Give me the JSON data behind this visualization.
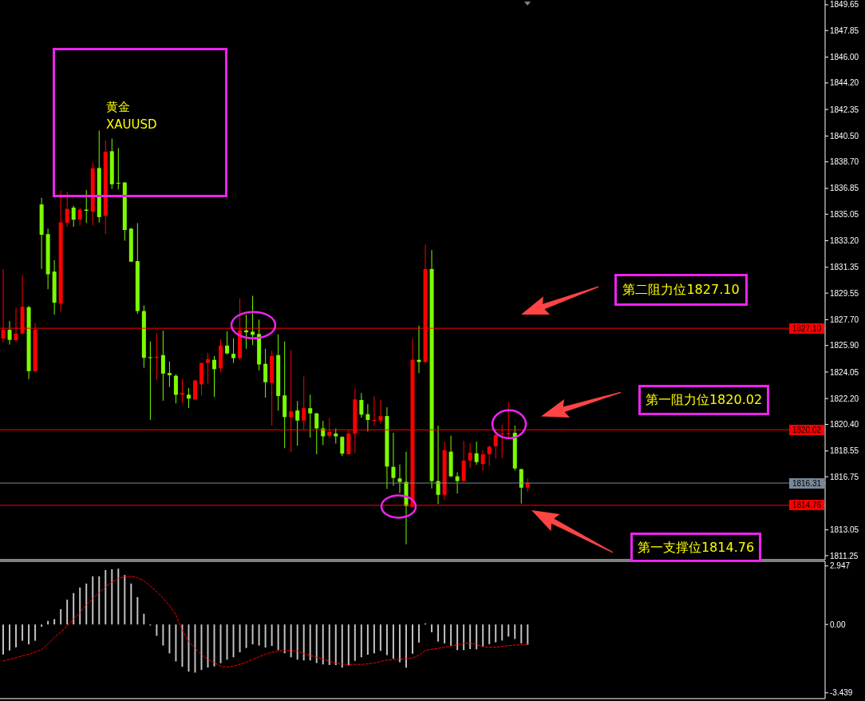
{
  "chart_data": [
    {
      "type": "candlestick",
      "title": "黄金",
      "subtitle": "XAUUSD",
      "categories": [
        null,
        null,
        null,
        null,
        null,
        null,
        null,
        null,
        null,
        null,
        null,
        null,
        null,
        null,
        null,
        null,
        null,
        null,
        null,
        null,
        null,
        null,
        null,
        null,
        null,
        null,
        null,
        null,
        null,
        null,
        null,
        null,
        null,
        null,
        null,
        null,
        null,
        null,
        null,
        null,
        null,
        null,
        null,
        null,
        null,
        null,
        null,
        null,
        null,
        null,
        null,
        null,
        null,
        null,
        null,
        null,
        null,
        null,
        null,
        null,
        null,
        null,
        null,
        null,
        null,
        null,
        null,
        null,
        null,
        null,
        null,
        null,
        null,
        null,
        null,
        null,
        null,
        null,
        null,
        null,
        null,
        null,
        null,
        null,
        null,
        null,
        null,
        null,
        null,
        null,
        null,
        null,
        null,
        null,
        null,
        null,
        null,
        null,
        null,
        null,
        null,
        null,
        null,
        null,
        null,
        null,
        null,
        null,
        null,
        null,
        null,
        null,
        null,
        null,
        null,
        null,
        null,
        null,
        null,
        null,
        null,
        null,
        null,
        null,
        null,
        null,
        null,
        null,
        null
      ],
      "ohlc": [
        [
          1826.38,
          1831.23,
          1826.11,
          1826.99
        ],
        [
          1826.99,
          1827.6,
          1825.96,
          1826.29
        ],
        [
          1826.27,
          1828.53,
          1826.18,
          1826.73
        ],
        [
          1826.73,
          1830.81,
          1826.71,
          1828.6
        ],
        [
          1828.57,
          1828.66,
          1823.56,
          1824.11
        ],
        [
          1824.11,
          1827.47,
          1824.05,
          1827.01
        ],
        [
          1835.73,
          1836.19,
          1831.23,
          1833.62
        ],
        [
          1833.66,
          1834.04,
          1829.82,
          1830.86
        ],
        [
          1831.05,
          1831.84,
          1828.05,
          1828.88
        ],
        [
          1828.81,
          1836.69,
          1828.26,
          1834.48
        ],
        [
          1834.44,
          1836.62,
          1834.17,
          1835.42
        ],
        [
          1835.51,
          1835.64,
          1834.17,
          1834.67
        ],
        [
          1834.67,
          1835.51,
          1834.26,
          1835.37
        ],
        [
          1835.37,
          1836.74,
          1834.44,
          1835.29
        ],
        [
          1835.22,
          1838.67,
          1834.26,
          1838.25
        ],
        [
          1838.27,
          1840.88,
          1834.48,
          1834.85
        ],
        [
          1834.94,
          1840.21,
          1833.67,
          1839.4
        ],
        [
          1839.44,
          1840.32,
          1836.81,
          1837.14
        ],
        [
          1837.24,
          1839.66,
          1836.78,
          1837.2
        ],
        [
          1837.26,
          1837.29,
          1833.2,
          1833.95
        ],
        [
          1834.04,
          1834.1,
          1831.73,
          1831.74
        ],
        [
          1831.78,
          1834.43,
          1828.11,
          1828.3
        ],
        [
          1828.3,
          1828.7,
          1824.35,
          1825.04
        ],
        [
          1825.08,
          1826.18,
          1820.72,
          1825.04
        ],
        [
          1825.04,
          1826.77,
          1823.48,
          1825.12
        ],
        [
          1825.23,
          1826.92,
          1822.05,
          1823.94
        ],
        [
          1823.98,
          1824.77,
          1823.01,
          1823.83
        ],
        [
          1823.79,
          1823.89,
          1821.87,
          1822.46
        ],
        [
          1822.47,
          1823.57,
          1821.9,
          1822.6
        ],
        [
          1822.47,
          1822.93,
          1821.55,
          1822.2
        ],
        [
          1822.14,
          1823.52,
          1822.1,
          1823.46
        ],
        [
          1823.19,
          1824.68,
          1822.42,
          1824.68
        ],
        [
          1824.68,
          1825.39,
          1823.24,
          1824.95
        ],
        [
          1824.9,
          1825.17,
          1822.32,
          1824.25
        ],
        [
          1824.31,
          1826.33,
          1824.03,
          1825.89
        ],
        [
          1825.89,
          1826.88,
          1825.27,
          1825.35
        ],
        [
          1825.32,
          1826.4,
          1824.68,
          1825.02
        ],
        [
          1825.02,
          1829.16,
          1824.9,
          1826.95
        ],
        [
          1826.95,
          1828.05,
          1825.67,
          1826.82
        ],
        [
          1826.86,
          1829.36,
          1825.94,
          1826.64
        ],
        [
          1826.7,
          1827.71,
          1824.16,
          1824.58
        ],
        [
          1824.62,
          1825.67,
          1822.27,
          1823.34
        ],
        [
          1823.3,
          1825.54,
          1820.31,
          1825.17
        ],
        [
          1825.23,
          1826.68,
          1821.35,
          1822.38
        ],
        [
          1822.42,
          1826.18,
          1818.74,
          1820.91
        ],
        [
          1820.89,
          1825.57,
          1818.47,
          1821.31
        ],
        [
          1821.37,
          1822.03,
          1818.91,
          1820.67
        ],
        [
          1820.67,
          1823.74,
          1819.98,
          1821.53
        ],
        [
          1821.53,
          1822.47,
          1819.48,
          1821.17
        ],
        [
          1821.17,
          1821.2,
          1818.32,
          1820.12
        ],
        [
          1820.12,
          1820.64,
          1818.96,
          1819.57
        ],
        [
          1819.61,
          1820.86,
          1819.44,
          1819.88
        ],
        [
          1819.76,
          1820.12,
          1819.06,
          1819.57
        ],
        [
          1819.53,
          1819.57,
          1818.19,
          1818.36
        ],
        [
          1818.32,
          1820.03,
          1818.3,
          1819.76
        ],
        [
          1819.76,
          1822.91,
          1818.41,
          1822.14
        ],
        [
          1822.1,
          1822.58,
          1820.86,
          1821.08
        ],
        [
          1821.11,
          1821.81,
          1819.9,
          1820.71
        ],
        [
          1820.64,
          1822.36,
          1820.31,
          1820.71
        ],
        [
          1820.67,
          1822.09,
          1820.45,
          1820.98
        ],
        [
          1820.98,
          1821.59,
          1815.9,
          1817.46
        ],
        [
          1817.44,
          1819.81,
          1816.12,
          1816.67
        ],
        [
          1816.63,
          1817.61,
          1815.62,
          1816.39
        ],
        [
          1816.39,
          1818.5,
          1812.04,
          1814.7
        ],
        [
          1814.66,
          1826.37,
          1814.6,
          1824.9
        ],
        [
          1824.9,
          1827.28,
          1823.98,
          1824.75
        ],
        [
          1824.75,
          1832.94,
          1824.7,
          1831.23
        ],
        [
          1831.23,
          1832.55,
          1815.93,
          1816.45
        ],
        [
          1816.45,
          1820.31,
          1814.85,
          1815.49
        ],
        [
          1815.49,
          1819.2,
          1815.16,
          1818.61
        ],
        [
          1818.5,
          1819.61,
          1816.72,
          1816.78
        ],
        [
          1816.78,
          1817.06,
          1815.58,
          1816.45
        ],
        [
          1816.45,
          1819.26,
          1816.36,
          1817.88
        ],
        [
          1817.88,
          1819.09,
          1817.36,
          1818.43
        ],
        [
          1818.38,
          1819.2,
          1817.58,
          1817.77
        ],
        [
          1817.64,
          1818.61,
          1817.14,
          1818.32
        ],
        [
          1818.32,
          1818.93,
          1817.5,
          1818.84
        ],
        [
          1818.87,
          1820.12,
          1818.01,
          1819.66
        ],
        [
          1819.7,
          1820.38,
          1818.06,
          1819.76
        ],
        [
          1819.76,
          1821.96,
          1819.39,
          1819.77
        ],
        [
          1819.81,
          1820.31,
          1817.18,
          1817.33
        ],
        [
          1817.28,
          1817.3,
          1814.88,
          1815.99
        ],
        [
          1815.99,
          1816.63,
          1815.71,
          1816.31
        ],
        null,
        null,
        null,
        null,
        null,
        null,
        null,
        null,
        null,
        null,
        null,
        null,
        null,
        null,
        null,
        null,
        null,
        null,
        null,
        null,
        null,
        null,
        null,
        null,
        null,
        null,
        null,
        null,
        null,
        null,
        null,
        null,
        null,
        null,
        null,
        null,
        null,
        null,
        null,
        null,
        null,
        null,
        null,
        null,
        null,
        null
      ],
      "colors": [
        "#ff0000",
        "#7cfc00",
        "#ff0000",
        "#ff0000",
        "#7cfc00",
        "#ff0000",
        "#7cfc00",
        "#7cfc00",
        "#7cfc00",
        "#ff0000",
        "#ff0000",
        "#7cfc00",
        "#ff0000",
        "#7cfc00",
        "#ff0000",
        "#7cfc00",
        "#ff0000",
        "#7cfc00",
        "#7cfc00",
        "#7cfc00",
        "#7cfc00",
        "#7cfc00",
        "#7cfc00",
        "#7cfc00",
        "#ff0000",
        "#7cfc00",
        "#7cfc00",
        "#7cfc00",
        "#ff0000",
        "#7cfc00",
        "#ff0000",
        "#ff0000",
        "#ff0000",
        "#7cfc00",
        "#ff0000",
        "#7cfc00",
        "#7cfc00",
        "#ff0000",
        "#7cfc00",
        "#7cfc00",
        "#7cfc00",
        "#7cfc00",
        "#ff0000",
        "#7cfc00",
        "#7cfc00",
        "#ff0000",
        "#7cfc00",
        "#ff0000",
        "#7cfc00",
        "#7cfc00",
        "#7cfc00",
        "#ff0000",
        "#7cfc00",
        "#7cfc00",
        "#ff0000",
        "#ff0000",
        "#7cfc00",
        "#7cfc00",
        "#ff0000",
        "#ff0000",
        "#7cfc00",
        "#7cfc00",
        "#7cfc00",
        "#7cfc00",
        "#ff0000",
        "#7cfc00",
        "#ff0000",
        "#7cfc00",
        "#7cfc00",
        "#ff0000",
        "#7cfc00",
        "#7cfc00",
        "#ff0000",
        "#ff0000",
        "#7cfc00",
        "#ff0000",
        "#ff0000",
        "#ff0000",
        "#ff0000",
        "#ff0000",
        "#7cfc00",
        "#7cfc00",
        "#ff0000",
        null,
        null,
        null,
        null,
        null,
        null,
        null,
        null,
        null,
        null,
        null,
        null,
        null,
        null,
        null,
        null,
        null,
        null,
        null,
        null,
        null,
        null,
        null,
        null,
        null,
        null,
        null,
        null,
        null,
        null,
        null,
        null,
        null,
        null,
        null,
        null,
        null,
        null,
        null,
        null,
        null,
        null,
        null,
        null,
        null,
        null
      ],
      "ylim": [
        1810.97,
        1849.98
      ],
      "yticks": [
        1811.25,
        1813.05,
        1816.75,
        1818.55,
        {
          "value": 1820.4,
          "label": "1820.40"
        },
        {
          "value": 1822.2,
          "label": "1822.20"
        },
        1824.05,
        {
          "value": 1825.9,
          "label": "1825.90"
        },
        {
          "value": 1827.7,
          "label": "1827.70"
        },
        1829.55,
        1831.35,
        {
          "value": 1833.2,
          "label": "1833.20"
        },
        1835.05,
        1836.85,
        {
          "value": 1838.7,
          "label": "1838.70"
        },
        {
          "value": 1840.5,
          "label": "1840.50"
        },
        1842.35,
        {
          "value": 1844.2,
          "label": "1844.20"
        },
        {
          "value": 1846,
          "label": "1846.00"
        },
        1847.85,
        1849.65
      ],
      "ref_lines": [
        {
          "axis": "y",
          "value": 1827.1,
          "label": "1827.10",
          "color": "#ff0000"
        },
        {
          "axis": "y",
          "value": 1820.02,
          "label": "1820.02",
          "color": "#ff0000"
        },
        {
          "axis": "y",
          "value": 1814.76,
          "label": "1814.76",
          "color": "#ff0000"
        },
        {
          "axis": "y",
          "value": 1816.31,
          "label": "1816.31",
          "color": "#778899"
        }
      ],
      "annotations": [
        {
          "text": "第二阻力位1827.10",
          "y": 1827.1
        },
        {
          "text": "第一阻力位1820.02",
          "y": 1820.02
        },
        {
          "text": "第一支撑位1814.76",
          "y": 1814.76
        }
      ]
    },
    {
      "type": "bar",
      "categories": [
        null,
        null,
        null,
        null,
        null,
        null,
        null,
        null,
        null,
        null,
        null,
        null,
        null,
        null,
        null,
        null,
        null,
        null,
        null,
        null,
        null,
        null,
        null,
        null,
        null,
        null,
        null,
        null,
        null,
        null,
        null,
        null,
        null,
        null,
        null,
        null,
        null,
        null,
        null,
        null,
        null,
        null,
        null,
        null,
        null,
        null,
        null,
        null,
        null,
        null,
        null,
        null,
        null,
        null,
        null,
        null,
        null,
        null,
        null,
        null,
        null,
        null,
        null,
        null,
        null,
        null,
        null,
        null,
        null,
        null,
        null,
        null,
        null,
        null,
        null,
        null,
        null,
        null,
        null,
        null,
        null,
        null,
        null,
        null,
        null,
        null,
        null,
        null,
        null,
        null,
        null,
        null,
        null,
        null,
        null,
        null,
        null,
        null,
        null,
        null,
        null,
        null,
        null,
        null,
        null,
        null,
        null,
        null,
        null,
        null,
        null,
        null,
        null,
        null,
        null,
        null,
        null,
        null,
        null,
        null,
        null,
        null,
        null,
        null,
        null,
        null,
        null,
        null,
        null
      ],
      "series": [
        {
          "color": "#c0c0c0",
          "values": [
            -1.51,
            -1.31,
            -1.15,
            -0.82,
            -1.0,
            -0.82,
            -0.11,
            0.18,
            0.27,
            0.77,
            1.25,
            1.58,
            1.86,
            2.06,
            2.42,
            2.42,
            2.74,
            2.78,
            2.81,
            2.49,
            2.06,
            1.38,
            0.54,
            -0.05,
            -0.57,
            -1.06,
            -1.45,
            -1.86,
            -2.13,
            -2.37,
            -2.42,
            -2.29,
            -2.17,
            -2.11,
            -1.95,
            -1.77,
            -1.65,
            -1.4,
            -1.18,
            -1.0,
            -1.06,
            -1.16,
            -1.08,
            -1.29,
            -1.45,
            -1.65,
            -1.77,
            -1.81,
            -1.81,
            -1.94,
            -2.01,
            -2.04,
            -2.04,
            -2.17,
            -2.06,
            -1.83,
            -1.65,
            -1.52,
            -1.45,
            -1.33,
            -1.54,
            -1.72,
            -1.9,
            -2.17,
            -1.47,
            -0.91,
            0.05,
            -0.39,
            -0.86,
            -0.95,
            -1.08,
            -1.29,
            -1.29,
            -1.24,
            -1.25,
            -1.11,
            -0.99,
            -0.9,
            -0.81,
            -0.61,
            -0.73,
            -0.95,
            -1.02,
            null,
            null,
            null,
            null,
            null,
            null,
            null,
            null,
            null,
            null,
            null,
            null,
            null,
            null,
            null,
            null,
            null,
            null,
            null,
            null,
            null,
            null,
            null,
            null,
            null,
            null,
            null,
            null,
            null,
            null,
            null,
            null,
            null,
            null,
            null,
            null,
            null,
            null,
            null,
            null,
            null,
            null,
            null,
            null,
            null,
            null
          ]
        },
        {
          "type": "line",
          "color": "#ff0000",
          "line_style": "dashed",
          "values": [
            -1.84,
            -1.76,
            -1.67,
            -1.58,
            -1.5,
            -1.38,
            -1.27,
            -0.98,
            -0.65,
            -0.38,
            -0.08,
            0.27,
            0.6,
            0.98,
            1.3,
            1.6,
            1.9,
            2.12,
            2.32,
            2.4,
            2.42,
            2.36,
            2.2,
            1.93,
            1.65,
            1.33,
            0.95,
            0.5,
            -0.29,
            -0.85,
            -1.2,
            -1.52,
            -1.75,
            -1.92,
            -2.1,
            -2.15,
            -2.1,
            -2.0,
            -1.9,
            -1.75,
            -1.63,
            -1.5,
            -1.4,
            -1.33,
            -1.31,
            -1.31,
            -1.34,
            -1.47,
            -1.55,
            -1.65,
            -1.74,
            -1.85,
            -1.94,
            -1.99,
            -2.01,
            -2.01,
            -2.01,
            -1.98,
            -1.94,
            -1.86,
            -1.79,
            -1.77,
            -1.75,
            -1.72,
            -1.68,
            -1.55,
            -1.3,
            -1.25,
            -1.2,
            -1.15,
            -1.08,
            -1.02,
            -0.95,
            -0.94,
            -1.0,
            -1.12,
            -1.15,
            -1.14,
            -1.11,
            -1.06,
            -1.04,
            -1.02,
            -0.99,
            null,
            null,
            null,
            null,
            null,
            null,
            null,
            null,
            null,
            null,
            null,
            null,
            null,
            null,
            null,
            null,
            null,
            null,
            null,
            null,
            null,
            null,
            null,
            null,
            null,
            null,
            null,
            null,
            null,
            null,
            null,
            null,
            null,
            null,
            null,
            null,
            null,
            null,
            null,
            null,
            null,
            null,
            null,
            null,
            null,
            null
          ]
        }
      ],
      "ylim": [
        -3.73,
        3.18
      ],
      "yticks": [
        -3.439,
        {
          "value": 0,
          "label": "0.00"
        },
        2.947
      ]
    }
  ]
}
